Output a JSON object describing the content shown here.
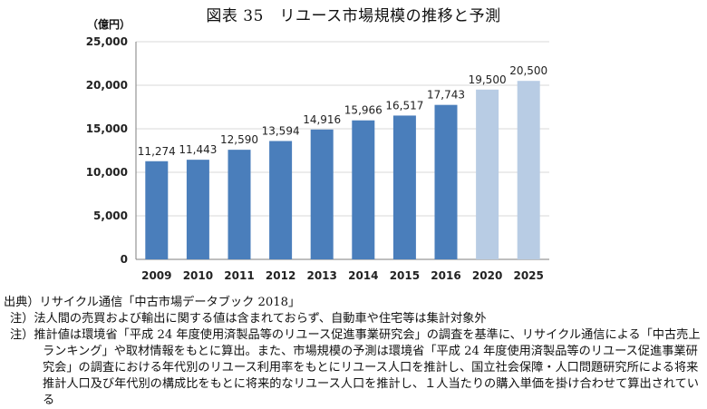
{
  "chart_data": {
    "type": "bar",
    "title": "図表 35　リユース市場規模の推移と予測",
    "unit_label": "（億円）",
    "categories": [
      "2009",
      "2010",
      "2011",
      "2012",
      "2013",
      "2014",
      "2015",
      "2016",
      "2020",
      "2025"
    ],
    "values": [
      11274,
      11443,
      12590,
      13594,
      14916,
      15966,
      16517,
      17743,
      19500,
      20500
    ],
    "value_labels": [
      "11,274",
      "11,443",
      "12,590",
      "13,594",
      "14,916",
      "15,966",
      "16,517",
      "17,743",
      "19,500",
      "20,500"
    ],
    "forecast": [
      false,
      false,
      false,
      false,
      false,
      false,
      false,
      false,
      true,
      true
    ],
    "ylim": [
      0,
      25000
    ],
    "yticks": [
      0,
      5000,
      10000,
      15000,
      20000,
      25000
    ],
    "ytick_labels": [
      "0",
      "5,000",
      "10,000",
      "15,000",
      "20,000",
      "25,000"
    ],
    "grid": true,
    "xlabel": "",
    "ylabel": "",
    "colors": {
      "actual": "#4a7ebb",
      "forecast": "#b8cce4",
      "grid": "#d9d9d9",
      "axis": "#7f7f7f"
    }
  },
  "notes": {
    "source": "出典）リサイクル通信「中古市場データブック 2018」",
    "note1": "注）法人間の売買および輸出に関する値は含まれておらず、自動車や住宅等は集計対象外",
    "note2": "注）推計値は環境省「平成 24 年度使用済製品等のリユース促進事業研究会」の調査を基準に、リサイクル通信による「中古売上ランキング」や取材情報をもとに算出。また、市場規模の予測は環境省「平成 24 年度使用済製品等のリユース促進事業研究会」の調査における年代別のリユース利用率をもとにリユース人口を推計し、国立社会保障・人口問題研究所による将来推計人口及び年代別の構成比をもとに将来的なリユース人口を推計し、１人当たりの購入単価を掛け合わせて算出されている"
  }
}
